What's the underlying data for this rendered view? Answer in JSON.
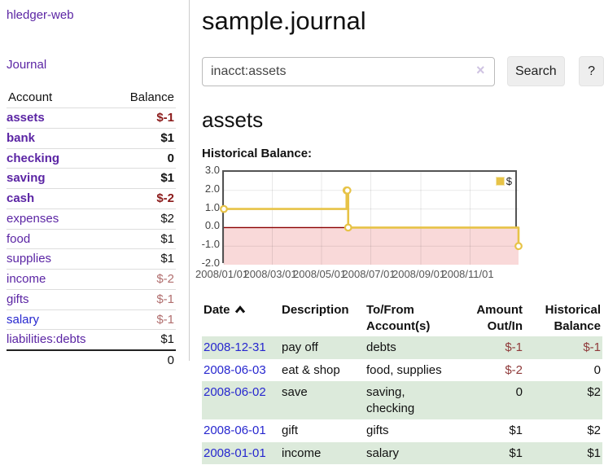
{
  "brand": "hledger-web",
  "nav": {
    "journal": "Journal"
  },
  "sidebar": {
    "account_header": "Account",
    "balance_header": "Balance",
    "accounts": [
      {
        "name": "assets",
        "balance": "$-1"
      },
      {
        "name": "bank",
        "balance": "$1"
      },
      {
        "name": "checking",
        "balance": "0"
      },
      {
        "name": "saving",
        "balance": "$1"
      },
      {
        "name": "cash",
        "balance": "$-2"
      },
      {
        "name": "expenses",
        "balance": "$2"
      },
      {
        "name": "food",
        "balance": "$1"
      },
      {
        "name": "supplies",
        "balance": "$1"
      },
      {
        "name": "income",
        "balance": "$-2"
      },
      {
        "name": "gifts",
        "balance": "$-1"
      },
      {
        "name": "salary",
        "balance": "$-1"
      },
      {
        "name": "liabilities:debts",
        "balance": "$1"
      }
    ],
    "total": "0"
  },
  "page": {
    "title": "sample.journal"
  },
  "search": {
    "value": "inacct:assets",
    "clear": "×",
    "search_label": "Search",
    "help_label": "?"
  },
  "register": {
    "heading": "assets",
    "chart_title": "Historical Balance:",
    "headers": {
      "date": "Date",
      "description": "Description",
      "account": "To/From Account(s)",
      "amount": "Amount Out/In",
      "balance": "Historical Balance"
    },
    "rows": [
      {
        "date": "2008-12-31",
        "description": "pay off",
        "accounts": "debts",
        "amount": "$-1",
        "balance": "$-1"
      },
      {
        "date": "2008-06-03",
        "description": "eat & shop",
        "accounts": "food, supplies",
        "amount": "$-2",
        "balance": "0"
      },
      {
        "date": "2008-06-02",
        "description": "save",
        "accounts": "saving, checking",
        "amount": "0",
        "balance": "$2"
      },
      {
        "date": "2008-06-01",
        "description": "gift",
        "accounts": "gifts",
        "amount": "$1",
        "balance": "$2"
      },
      {
        "date": "2008-01-01",
        "description": "income",
        "accounts": "salary",
        "amount": "$1",
        "balance": "$1"
      }
    ]
  },
  "chart_data": {
    "type": "line",
    "title": "Historical Balance",
    "step": true,
    "series": [
      {
        "name": "$",
        "x": [
          "2008-01-01",
          "2008-06-01",
          "2008-06-02",
          "2008-06-03",
          "2008-12-31"
        ],
        "values": [
          1,
          2,
          2,
          0,
          -1
        ]
      }
    ],
    "x_range": [
      "2008-01-01",
      "2008-12-31"
    ],
    "ylim": [
      -2,
      3
    ],
    "y_tick_labels": [
      "3.0",
      "2.0",
      "1.0",
      "0.0",
      "-1.0",
      "-2.0"
    ],
    "x_ticks": [
      "2008/01/01",
      "2008/03/01",
      "2008/05/01",
      "2008/07/01",
      "2008/09/01",
      "2008/11/01"
    ],
    "legend": "$",
    "legend_position": "top-right",
    "grid": true,
    "colors": {
      "line": "#e7c347",
      "negative_fill": "#f9d9d9",
      "zero_line": "#8b0000"
    }
  }
}
